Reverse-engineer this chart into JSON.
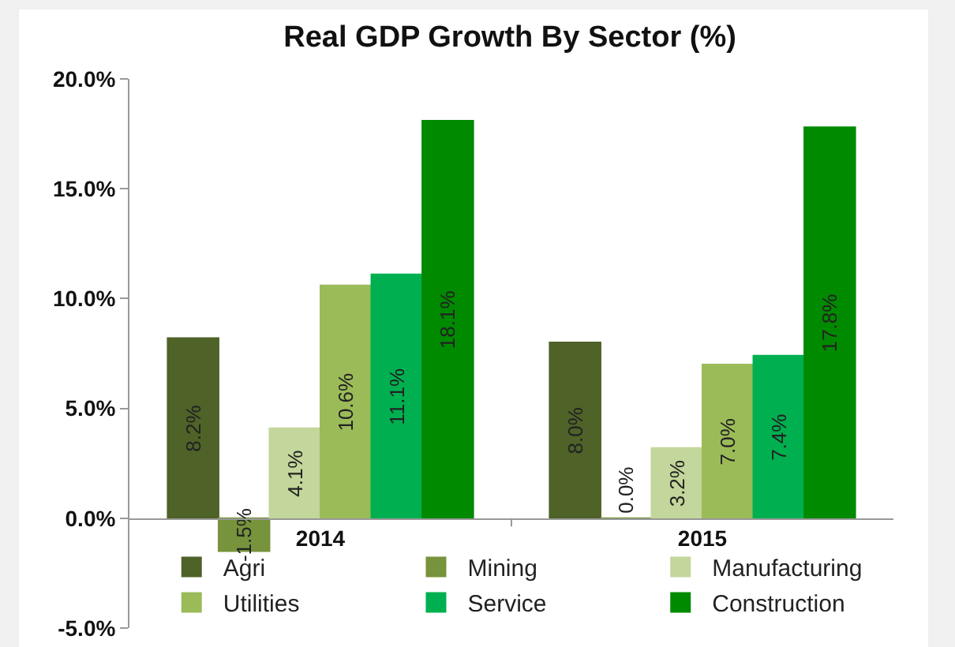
{
  "chart_data": {
    "type": "bar",
    "title": "Real GDP Growth By Sector (%)",
    "categories": [
      "2014",
      "2015"
    ],
    "series": [
      {
        "name": "Agri",
        "color": "#4f6228",
        "values": [
          8.2,
          8.0
        ],
        "value_labels": [
          "8.2%",
          "8.0%"
        ]
      },
      {
        "name": "Mining",
        "color": "#77933c",
        "values": [
          -1.5,
          0.0
        ],
        "value_labels": [
          "-1.5%",
          "0.0%"
        ]
      },
      {
        "name": "Manufacturing",
        "color": "#c3d69b",
        "values": [
          4.1,
          3.2
        ],
        "value_labels": [
          "4.1%",
          "3.2%"
        ]
      },
      {
        "name": "Utilities",
        "color": "#9bbb59",
        "values": [
          10.6,
          7.0
        ],
        "value_labels": [
          "10.6%",
          "7.0%"
        ]
      },
      {
        "name": "Service",
        "color": "#00b050",
        "values": [
          11.1,
          7.4
        ],
        "value_labels": [
          "11.1%",
          "7.4%"
        ]
      },
      {
        "name": "Construction",
        "color": "#008a00",
        "values": [
          18.1,
          17.8
        ],
        "value_labels": [
          "18.1%",
          "17.8%"
        ]
      }
    ],
    "ylim": [
      -5,
      20
    ],
    "yticks": [
      {
        "value": -5,
        "label": "-5.0%"
      },
      {
        "value": 0,
        "label": "0.0%"
      },
      {
        "value": 5,
        "label": "5.0%"
      },
      {
        "value": 10,
        "label": "10.0%"
      },
      {
        "value": 15,
        "label": "15.0%"
      },
      {
        "value": 20,
        "label": "20.0%"
      }
    ],
    "grid": false,
    "legend": "bottom"
  }
}
